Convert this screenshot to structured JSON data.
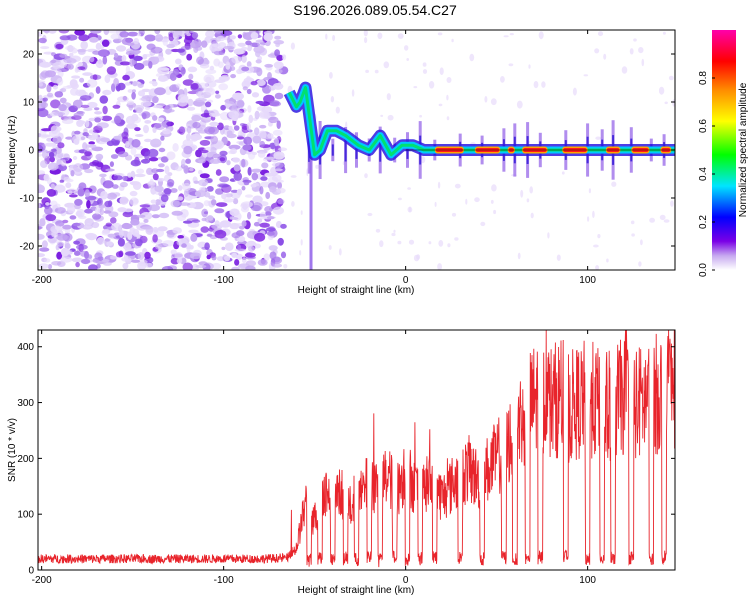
{
  "title": "S196.2026.089.05.54.C27",
  "chart_data": [
    {
      "type": "heatmap",
      "xlabel": "Height of straight line (km)",
      "ylabel": "Frequency (Hz)",
      "xlim": [
        -202,
        148
      ],
      "ylim": [
        -25,
        25
      ],
      "xticks": [
        -200,
        -100,
        0,
        100
      ],
      "yticks": [
        -20,
        -10,
        0,
        10,
        20
      ],
      "colorbar": {
        "label": "Normalized spectral amplitude",
        "range": [
          0.0,
          1.0
        ],
        "ticks": [
          "0.0",
          "0.2",
          "0.4",
          "0.6",
          "0.8"
        ],
        "colors": [
          "#ffffff",
          "#7a00e6",
          "#0000ff",
          "#00e5ff",
          "#00ff00",
          "#ffff00",
          "#ff8c00",
          "#ff0000",
          "#ff00aa"
        ]
      },
      "noise_region_end_km": -67,
      "signal_track": [
        {
          "x": -64,
          "y": 12
        },
        {
          "x": -60,
          "y": 9
        },
        {
          "x": -58,
          "y": 10
        },
        {
          "x": -55,
          "y": 13
        },
        {
          "x": -50,
          "y": -1
        },
        {
          "x": -47,
          "y": 0
        },
        {
          "x": -43,
          "y": 4
        },
        {
          "x": -38,
          "y": 4
        },
        {
          "x": -33,
          "y": 3
        },
        {
          "x": -26,
          "y": 1
        },
        {
          "x": -20,
          "y": 0
        },
        {
          "x": -14,
          "y": 3
        },
        {
          "x": -8,
          "y": -1
        },
        {
          "x": -2,
          "y": 1
        },
        {
          "x": 4,
          "y": 1
        },
        {
          "x": 10,
          "y": 0
        },
        {
          "x": 148,
          "y": 0
        }
      ],
      "strong_segments_km": [
        [
          16,
          32
        ],
        [
          38,
          52
        ],
        [
          56,
          60
        ],
        [
          64,
          78
        ],
        [
          86,
          100
        ],
        [
          110,
          118
        ],
        [
          124,
          134
        ],
        [
          140,
          146
        ]
      ]
    },
    {
      "type": "line",
      "xlabel": "Height of straight line (km)",
      "ylabel": "SNR (10 * v/v)",
      "xlim": [
        -202,
        148
      ],
      "ylim": [
        0,
        430
      ],
      "xticks": [
        -200,
        -100,
        0,
        100
      ],
      "yticks": [
        0,
        100,
        200,
        300,
        400
      ],
      "color": "#e8242b",
      "series": [
        {
          "name": "SNR",
          "x": [
            -202,
            -170,
            -140,
            -110,
            -80,
            -65,
            -60,
            -55,
            -50,
            -45,
            -40,
            -35,
            -30,
            -25,
            -20,
            -15,
            -10,
            -5,
            0,
            5,
            10,
            15,
            20,
            25,
            30,
            35,
            40,
            45,
            50,
            55,
            60,
            65,
            70,
            75,
            80,
            85,
            90,
            95,
            100,
            105,
            110,
            115,
            120,
            125,
            130,
            135,
            140,
            148
          ],
          "y": [
            20,
            20,
            20,
            20,
            20,
            22,
            40,
            120,
            90,
            150,
            120,
            140,
            110,
            130,
            160,
            150,
            170,
            140,
            180,
            150,
            140,
            160,
            130,
            150,
            170,
            180,
            160,
            180,
            200,
            220,
            250,
            280,
            300,
            320,
            300,
            310,
            290,
            300,
            310,
            300,
            290,
            300,
            310,
            300,
            300,
            310,
            320,
            330
          ]
        },
        {
          "name": "dips_km",
          "x": [
            -53,
            -47,
            -40,
            -33,
            -27,
            -20,
            -14,
            -6,
            1,
            8,
            16,
            30,
            42,
            54,
            60,
            67,
            74,
            88,
            100,
            108,
            114,
            124,
            135,
            142
          ],
          "y": [
            5,
            8,
            5,
            8,
            6,
            10,
            5,
            12,
            5,
            8,
            10,
            8,
            8,
            10,
            8,
            8,
            10,
            10,
            8,
            10,
            8,
            10,
            8,
            10
          ]
        }
      ]
    }
  ]
}
